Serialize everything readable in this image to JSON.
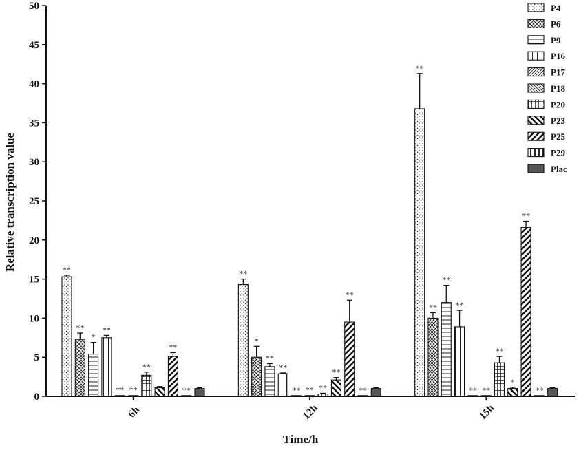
{
  "chart_data": {
    "type": "bar",
    "title": "",
    "xlabel": "Time/h",
    "ylabel": "Relative transcription  value",
    "ylim": [
      0,
      50
    ],
    "yticks": [
      0,
      5,
      10,
      15,
      20,
      25,
      30,
      35,
      40,
      45,
      50
    ],
    "categories": [
      "6h",
      "12h",
      "15h"
    ],
    "legend_position": "top-right",
    "series": [
      {
        "name": "P4",
        "pattern": "dots",
        "values": [
          15.3,
          14.3,
          36.8
        ],
        "errors": [
          0.2,
          0.7,
          4.5
        ],
        "sig": [
          "**",
          "**",
          "**"
        ]
      },
      {
        "name": "P6",
        "pattern": "crosshatch",
        "values": [
          7.3,
          5.0,
          10.0
        ],
        "errors": [
          0.8,
          1.4,
          0.7
        ],
        "sig": [
          "**",
          "*",
          "**"
        ]
      },
      {
        "name": "P9",
        "pattern": "hlines",
        "values": [
          5.4,
          3.8,
          12.0
        ],
        "errors": [
          1.5,
          0.4,
          2.2
        ],
        "sig": [
          "*",
          "**",
          "**"
        ]
      },
      {
        "name": "P16",
        "pattern": "vlines",
        "values": [
          7.5,
          2.9,
          8.9
        ],
        "errors": [
          0.3,
          0.1,
          2.1
        ],
        "sig": [
          "**",
          "**",
          "**"
        ]
      },
      {
        "name": "P17",
        "pattern": "diag-fine",
        "values": [
          0.1,
          0.05,
          0.05
        ],
        "errors": [
          0.05,
          0.03,
          0.03
        ],
        "sig": [
          "**",
          "**",
          "**"
        ]
      },
      {
        "name": "P18",
        "pattern": "diag-back",
        "values": [
          0.1,
          0.1,
          0.05
        ],
        "errors": [
          0.05,
          0.05,
          0.03
        ],
        "sig": [
          "**",
          "**",
          "**"
        ]
      },
      {
        "name": "P20",
        "pattern": "grid",
        "values": [
          2.7,
          0.3,
          4.3
        ],
        "errors": [
          0.4,
          0.1,
          0.8
        ],
        "sig": [
          "**",
          "**",
          "**"
        ]
      },
      {
        "name": "P23",
        "pattern": "diag-bold-back",
        "values": [
          1.1,
          2.1,
          1.0
        ],
        "errors": [
          0.15,
          0.3,
          0.15
        ],
        "sig": [
          "",
          "**",
          "*"
        ]
      },
      {
        "name": "P25",
        "pattern": "diag-bold",
        "values": [
          5.1,
          9.5,
          21.6
        ],
        "errors": [
          0.5,
          2.8,
          0.8
        ],
        "sig": [
          "**",
          "**",
          "**"
        ]
      },
      {
        "name": "P29",
        "pattern": "vlines-bold",
        "values": [
          0.05,
          0.05,
          0.05
        ],
        "errors": [
          0.02,
          0.02,
          0.02
        ],
        "sig": [
          "**",
          "**",
          "**"
        ]
      },
      {
        "name": "Plac",
        "pattern": "solid",
        "values": [
          1.0,
          1.0,
          1.0
        ],
        "errors": [
          0.1,
          0.1,
          0.1
        ],
        "sig": [
          "",
          "",
          ""
        ]
      }
    ]
  },
  "colors": {
    "axis": "#111111",
    "bar_stroke": "#111111",
    "solid_fill": "#555555"
  }
}
